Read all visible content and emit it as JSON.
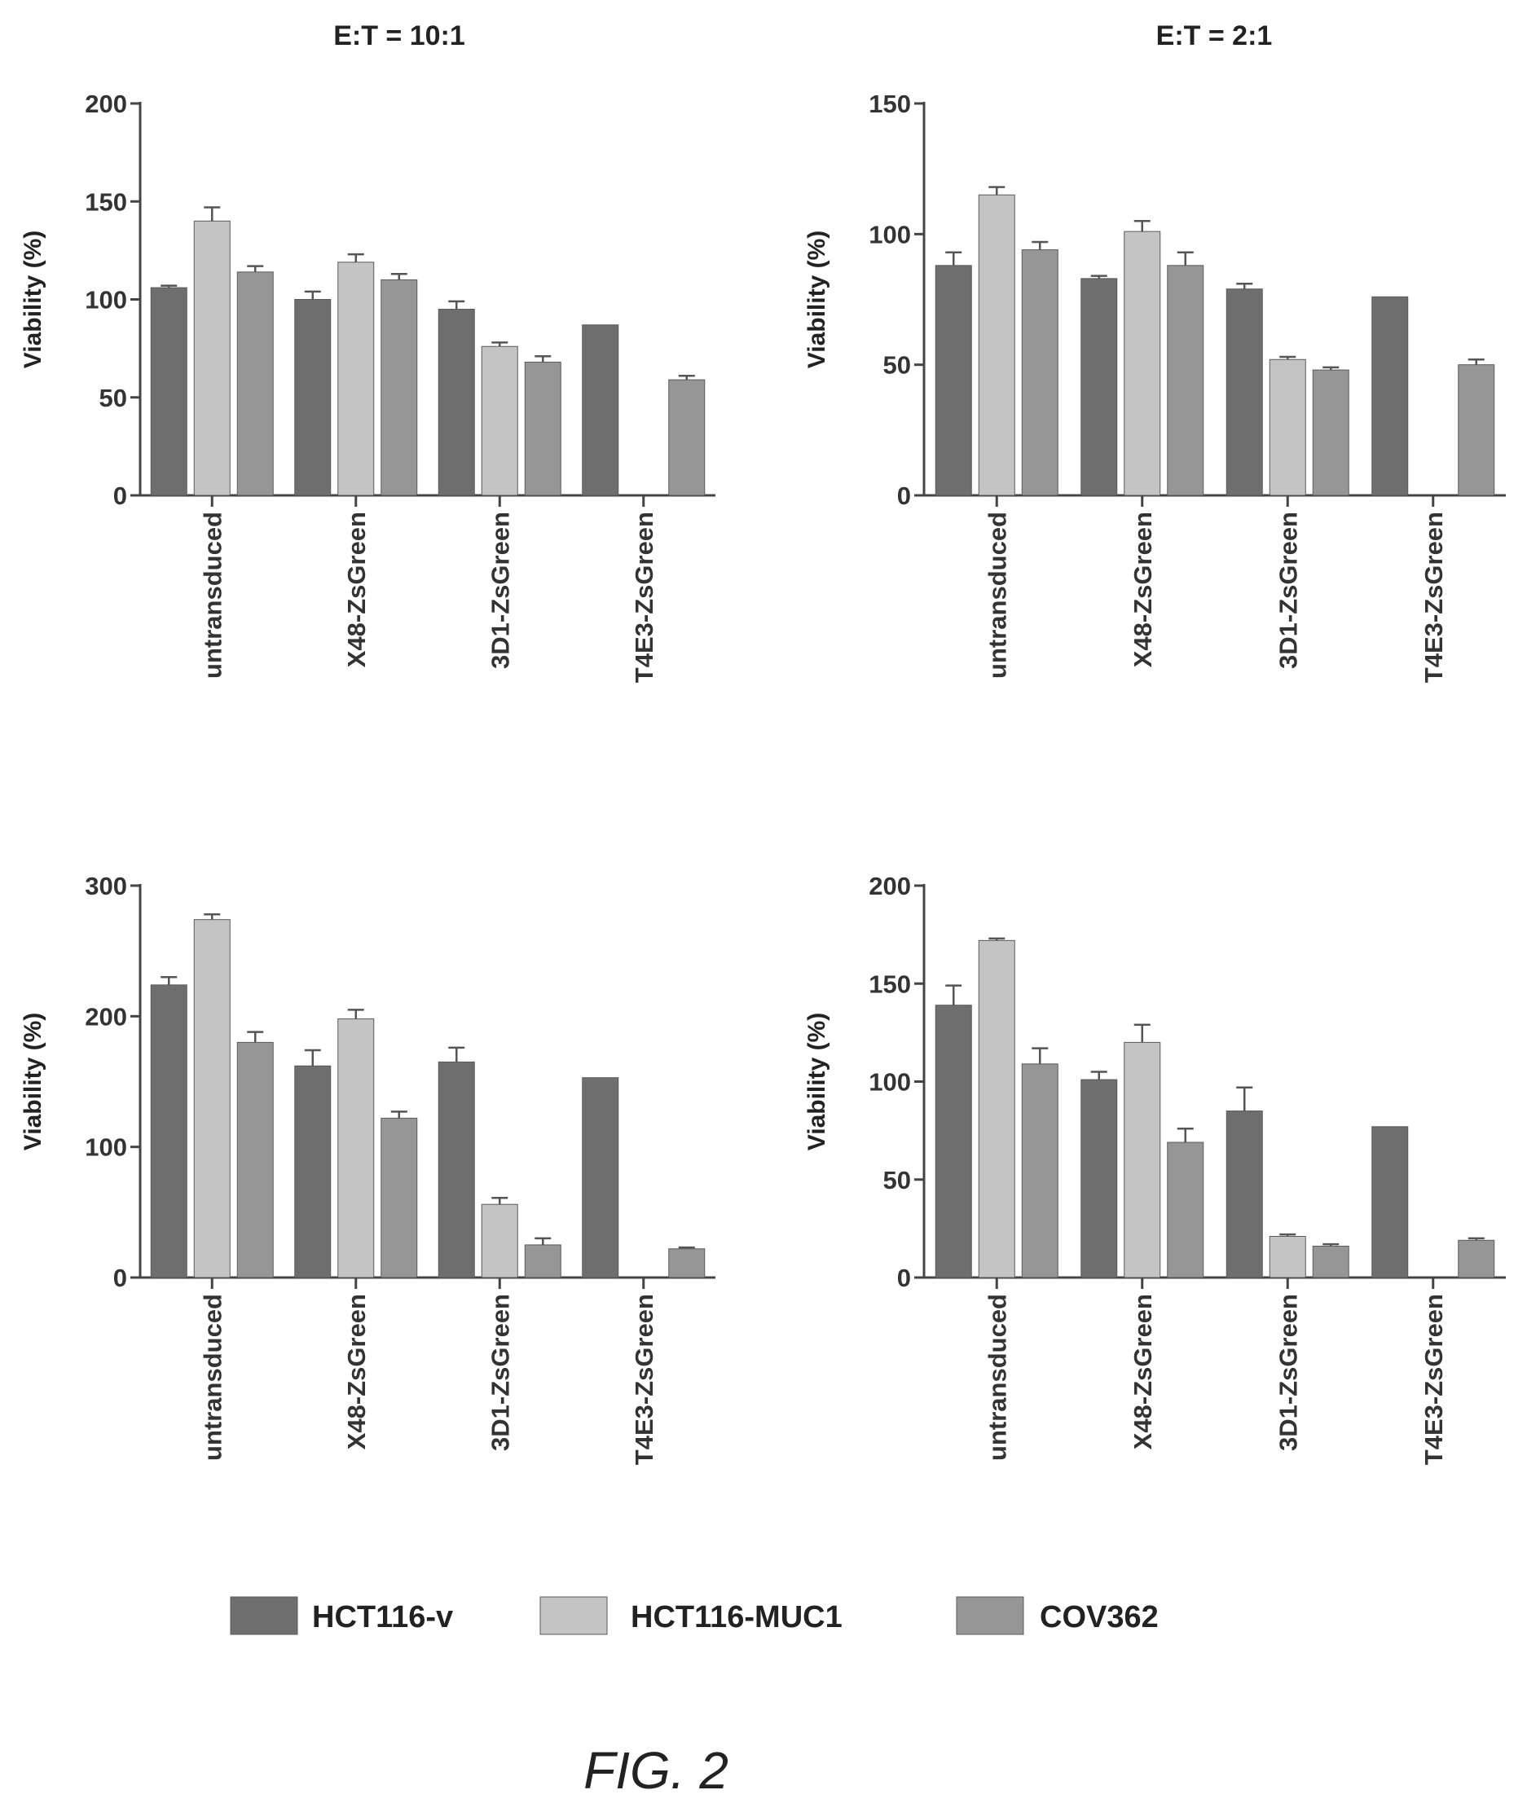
{
  "figure": {
    "caption": "FIG. 2"
  },
  "legend": [
    {
      "label": "HCT116-v",
      "color": "#6e6e6e"
    },
    {
      "label": "HCT116-MUC1",
      "color": "#c4c4c4"
    },
    {
      "label": "COV362",
      "color": "#969696"
    }
  ],
  "chart_data": [
    {
      "type": "bar",
      "title": "E:T = 10:1",
      "ylabel": "Viability (%)",
      "xlabel": "",
      "ylim": [
        0,
        200
      ],
      "yticks": [
        0,
        50,
        100,
        150,
        200
      ],
      "categories": [
        "untransduced",
        "X48-ZsGreen",
        "3D1-ZsGreen",
        "T4E3-ZsGreen"
      ],
      "series": [
        {
          "name": "HCT116-v",
          "values": [
            106,
            100,
            95,
            87
          ],
          "errors": [
            1,
            4,
            4,
            0
          ]
        },
        {
          "name": "HCT116-MUC1",
          "values": [
            140,
            119,
            76,
            0
          ],
          "errors": [
            7,
            4,
            2,
            0
          ]
        },
        {
          "name": "COV362",
          "values": [
            114,
            110,
            68,
            59
          ],
          "errors": [
            3,
            3,
            3,
            2
          ]
        }
      ],
      "grid": false
    },
    {
      "type": "bar",
      "title": "E:T = 2:1",
      "ylabel": "Viability (%)",
      "xlabel": "",
      "ylim": [
        0,
        150
      ],
      "yticks": [
        0,
        50,
        100,
        150
      ],
      "categories": [
        "untransduced",
        "X48-ZsGreen",
        "3D1-ZsGreen",
        "T4E3-ZsGreen"
      ],
      "series": [
        {
          "name": "HCT116-v",
          "values": [
            88,
            83,
            79,
            76
          ],
          "errors": [
            5,
            1,
            2,
            0
          ]
        },
        {
          "name": "HCT116-MUC1",
          "values": [
            115,
            101,
            52,
            0
          ],
          "errors": [
            3,
            4,
            1,
            0
          ]
        },
        {
          "name": "COV362",
          "values": [
            94,
            88,
            48,
            50
          ],
          "errors": [
            3,
            5,
            1,
            2
          ]
        }
      ],
      "grid": false
    },
    {
      "type": "bar",
      "title": "",
      "ylabel": "Viability (%)",
      "xlabel": "",
      "ylim": [
        0,
        300
      ],
      "yticks": [
        0,
        100,
        200,
        300
      ],
      "categories": [
        "untransduced",
        "X48-ZsGreen",
        "3D1-ZsGreen",
        "T4E3-ZsGreen"
      ],
      "series": [
        {
          "name": "HCT116-v",
          "values": [
            224,
            162,
            165,
            153
          ],
          "errors": [
            6,
            12,
            11,
            0
          ]
        },
        {
          "name": "HCT116-MUC1",
          "values": [
            274,
            198,
            56,
            0
          ],
          "errors": [
            4,
            7,
            5,
            0
          ]
        },
        {
          "name": "COV362",
          "values": [
            180,
            122,
            25,
            22
          ],
          "errors": [
            8,
            5,
            5,
            1
          ]
        }
      ],
      "grid": false
    },
    {
      "type": "bar",
      "title": "",
      "ylabel": "Viability (%)",
      "xlabel": "",
      "ylim": [
        0,
        200
      ],
      "yticks": [
        0,
        50,
        100,
        150,
        200
      ],
      "categories": [
        "untransduced",
        "X48-ZsGreen",
        "3D1-ZsGreen",
        "T4E3-ZsGreen"
      ],
      "series": [
        {
          "name": "HCT116-v",
          "values": [
            139,
            101,
            85,
            77
          ],
          "errors": [
            10,
            4,
            12,
            0
          ]
        },
        {
          "name": "HCT116-MUC1",
          "values": [
            172,
            120,
            21,
            0
          ],
          "errors": [
            1,
            9,
            1,
            0
          ]
        },
        {
          "name": "COV362",
          "values": [
            109,
            69,
            16,
            19
          ],
          "errors": [
            8,
            7,
            1,
            1
          ]
        }
      ],
      "grid": false
    }
  ]
}
